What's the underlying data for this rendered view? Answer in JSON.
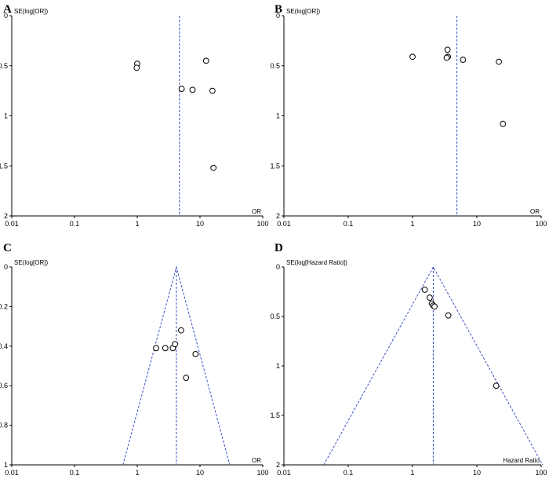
{
  "chart_data": [
    {
      "type": "scatter",
      "panel_label": "A",
      "ylabel": "SE(log[OR])",
      "xlabel": "OR",
      "x_scale": "log",
      "xlim": [
        0.01,
        100
      ],
      "ylim": [
        0,
        2
      ],
      "y_inverted": true,
      "x_ticks": [
        "0.01",
        "0.1",
        "1",
        "10",
        "100"
      ],
      "y_ticks": [
        "0",
        "0.5",
        "1",
        "1.5",
        "2"
      ],
      "y_tick_values": [
        0,
        0.5,
        1,
        1.5,
        2
      ],
      "reference_line": 4.7,
      "funnel": false,
      "points": [
        {
          "x": 1.0,
          "y": 0.48
        },
        {
          "x": 0.98,
          "y": 0.52
        },
        {
          "x": 12.5,
          "y": 0.45
        },
        {
          "x": 5.1,
          "y": 0.73
        },
        {
          "x": 7.6,
          "y": 0.74
        },
        {
          "x": 15.8,
          "y": 0.75
        },
        {
          "x": 16.4,
          "y": 1.52
        }
      ]
    },
    {
      "type": "scatter",
      "panel_label": "B",
      "ylabel": "SE(log[OR])",
      "xlabel": "OR",
      "x_scale": "log",
      "xlim": [
        0.01,
        100
      ],
      "ylim": [
        0,
        2
      ],
      "y_inverted": true,
      "x_ticks": [
        "0.01",
        "0.1",
        "1",
        "10",
        "100"
      ],
      "y_ticks": [
        "0",
        "0.5",
        "1",
        "1.5",
        "2"
      ],
      "y_tick_values": [
        0,
        0.5,
        1,
        1.5,
        2
      ],
      "reference_line": 4.9,
      "funnel": false,
      "points": [
        {
          "x": 1.0,
          "y": 0.41
        },
        {
          "x": 3.5,
          "y": 0.34
        },
        {
          "x": 3.55,
          "y": 0.41
        },
        {
          "x": 3.4,
          "y": 0.42
        },
        {
          "x": 6.1,
          "y": 0.44
        },
        {
          "x": 22.0,
          "y": 0.46
        },
        {
          "x": 25.5,
          "y": 1.08
        }
      ]
    },
    {
      "type": "scatter",
      "panel_label": "C",
      "ylabel": "SE(log[OR])",
      "xlabel": "OR",
      "x_scale": "log",
      "xlim": [
        0.01,
        100
      ],
      "ylim": [
        0,
        1
      ],
      "y_inverted": true,
      "x_ticks": [
        "0.01",
        "0.1",
        "1",
        "10",
        "100"
      ],
      "y_ticks": [
        "0",
        "0.2",
        "0.4",
        "0.6",
        "0.8",
        "1"
      ],
      "y_tick_values": [
        0,
        0.2,
        0.4,
        0.6,
        0.8,
        1
      ],
      "reference_line": 4.2,
      "funnel": true,
      "points": [
        {
          "x": 2.0,
          "y": 0.41
        },
        {
          "x": 2.8,
          "y": 0.41
        },
        {
          "x": 3.7,
          "y": 0.41
        },
        {
          "x": 4.0,
          "y": 0.39
        },
        {
          "x": 5.0,
          "y": 0.32
        },
        {
          "x": 8.5,
          "y": 0.44
        },
        {
          "x": 6.0,
          "y": 0.56
        }
      ]
    },
    {
      "type": "scatter",
      "panel_label": "D",
      "ylabel": "SE(log[Hazard Ratio])",
      "xlabel": "Hazard Ratio",
      "x_scale": "log",
      "xlim": [
        0.01,
        100
      ],
      "ylim": [
        0,
        2
      ],
      "y_inverted": true,
      "x_ticks": [
        "0.01",
        "0.1",
        "1",
        "10",
        "100"
      ],
      "y_ticks": [
        "0",
        "0.5",
        "1",
        "1.5",
        "2"
      ],
      "y_tick_values": [
        0,
        0.5,
        1,
        1.5,
        2
      ],
      "reference_line": 2.1,
      "funnel": true,
      "points": [
        {
          "x": 1.55,
          "y": 0.23
        },
        {
          "x": 1.85,
          "y": 0.31
        },
        {
          "x": 2.0,
          "y": 0.37
        },
        {
          "x": 2.1,
          "y": 0.39
        },
        {
          "x": 2.2,
          "y": 0.4
        },
        {
          "x": 3.6,
          "y": 0.49
        },
        {
          "x": 20.0,
          "y": 1.2
        }
      ]
    }
  ]
}
